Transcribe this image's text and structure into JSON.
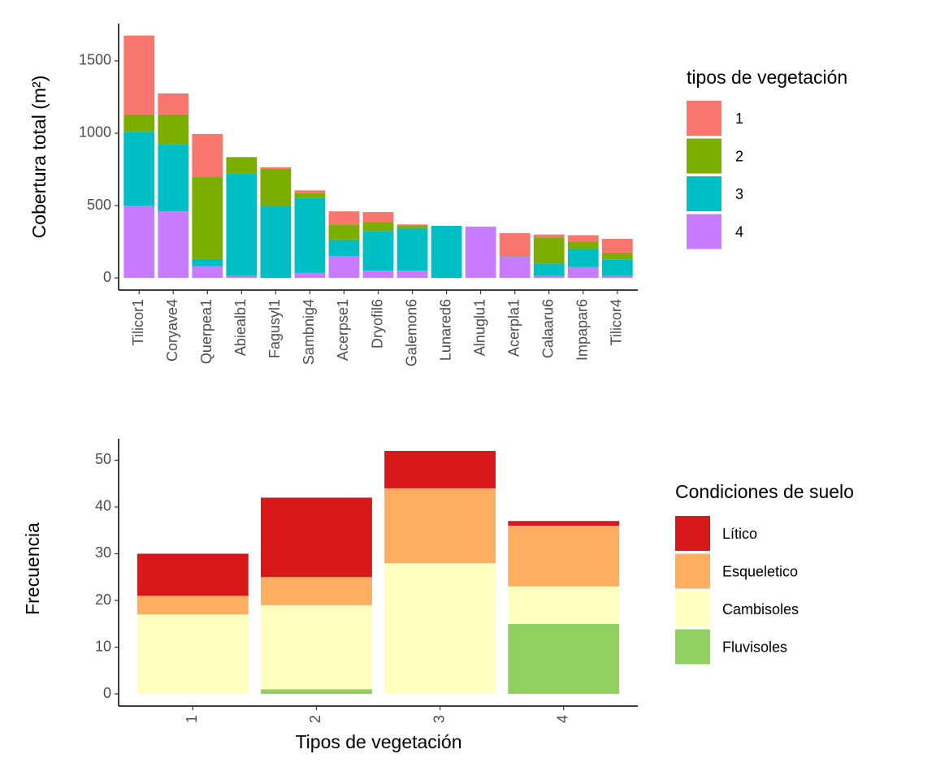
{
  "chart_data": [
    {
      "type": "bar",
      "stacked": true,
      "y_label": "Cobertura total (m²)",
      "legend_title": "tipos de vegetación",
      "categories": [
        "Tilicor1",
        "Coryave4",
        "Querpea1",
        "Abiealb1",
        "Fagusyl1",
        "Sambnig4",
        "Acerpse1",
        "Dryofil6",
        "Galemon6",
        "Lunared6",
        "Alnuglu1",
        "Acerpla1",
        "Calaaru6",
        "Impapar6",
        "Tilicor4"
      ],
      "series": [
        {
          "name": "1",
          "color": "#F8766D",
          "values": [
            545,
            145,
            295,
            0,
            10,
            20,
            90,
            70,
            10,
            0,
            0,
            160,
            20,
            45,
            95
          ]
        },
        {
          "name": "2",
          "color": "#7CAE00",
          "values": [
            120,
            205,
            570,
            115,
            255,
            30,
            105,
            60,
            15,
            0,
            0,
            0,
            180,
            50,
            50
          ]
        },
        {
          "name": "3",
          "color": "#00BFC4",
          "values": [
            510,
            465,
            50,
            705,
            500,
            520,
            115,
            275,
            295,
            360,
            0,
            5,
            85,
            125,
            110
          ]
        },
        {
          "name": "4",
          "color": "#C77CFF",
          "values": [
            500,
            460,
            80,
            15,
            0,
            35,
            150,
            50,
            50,
            0,
            355,
            145,
            15,
            75,
            15
          ]
        }
      ],
      "ylim": [
        -83.7,
        1757.7
      ],
      "yticks": [
        0,
        500,
        1000,
        1500
      ]
    },
    {
      "type": "bar",
      "stacked": true,
      "x_label": "Tipos de vegetación",
      "y_label": "Frecuencia",
      "legend_title": "Condiciones de suelo",
      "categories": [
        "1",
        "2",
        "3",
        "4"
      ],
      "series": [
        {
          "name": "Lítico",
          "color": "#D7191C",
          "values": [
            9,
            17,
            8,
            1
          ]
        },
        {
          "name": "Esqueletico",
          "color": "#FDAE61",
          "values": [
            4,
            6,
            16,
            13
          ]
        },
        {
          "name": "Cambisoles",
          "color": "#FFFFBF",
          "values": [
            17,
            18,
            28,
            8
          ]
        },
        {
          "name": "Fluvisoles",
          "color": "#91CF60",
          "values": [
            0,
            1,
            0,
            15
          ]
        }
      ],
      "ylim": [
        -2.6,
        54.6
      ],
      "yticks": [
        0,
        10,
        20,
        30,
        40,
        50
      ]
    }
  ]
}
